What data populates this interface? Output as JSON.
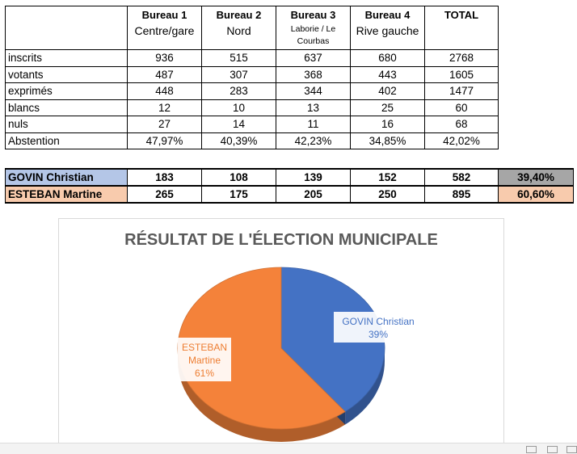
{
  "table": {
    "headers": [
      {
        "label": "",
        "sub": ""
      },
      {
        "label": "Bureau 1",
        "sub": "Centre/gare"
      },
      {
        "label": "Bureau 2",
        "sub": "Nord"
      },
      {
        "label": "Bureau 3",
        "sub": "Laborie / Le Courbas"
      },
      {
        "label": "Bureau 4",
        "sub": "Rive gauche"
      },
      {
        "label": "TOTAL",
        "sub": ""
      }
    ],
    "rows": [
      {
        "label": "inscrits",
        "values": [
          "936",
          "515",
          "637",
          "680",
          "2768"
        ]
      },
      {
        "label": "votants",
        "values": [
          "487",
          "307",
          "368",
          "443",
          "1605"
        ]
      },
      {
        "label": "exprimés",
        "values": [
          "448",
          "283",
          "344",
          "402",
          "1477"
        ]
      },
      {
        "label": "blancs",
        "values": [
          "12",
          "10",
          "13",
          "25",
          "60"
        ]
      },
      {
        "label": "nuls",
        "values": [
          "27",
          "14",
          "11",
          "16",
          "68"
        ]
      },
      {
        "label": "Abstention",
        "values": [
          "47,97%",
          "40,39%",
          "42,23%",
          "34,85%",
          "42,02%"
        ]
      }
    ]
  },
  "candidates": [
    {
      "name": "GOVIN Christian",
      "values": [
        "183",
        "108",
        "139",
        "152",
        "582"
      ],
      "pct": "39,40%"
    },
    {
      "name": "ESTEBAN Martine",
      "values": [
        "265",
        "175",
        "205",
        "250",
        "895"
      ],
      "pct": "60,60%"
    }
  ],
  "chart_data": {
    "type": "pie",
    "title": "RÉSULTAT DE L'ÉLECTION MUNICIPALE",
    "slices": [
      {
        "label_line1": "GOVIN Christian",
        "label_line2": "",
        "pct_label": "39%",
        "value": 39.4,
        "color": "#4472c4",
        "text_color": "#4472c4"
      },
      {
        "label_line1": "ESTEBAN",
        "label_line2": "Martine",
        "pct_label": "61%",
        "value": 60.6,
        "color": "#f4823a",
        "text_color": "#ed7d31"
      }
    ]
  }
}
